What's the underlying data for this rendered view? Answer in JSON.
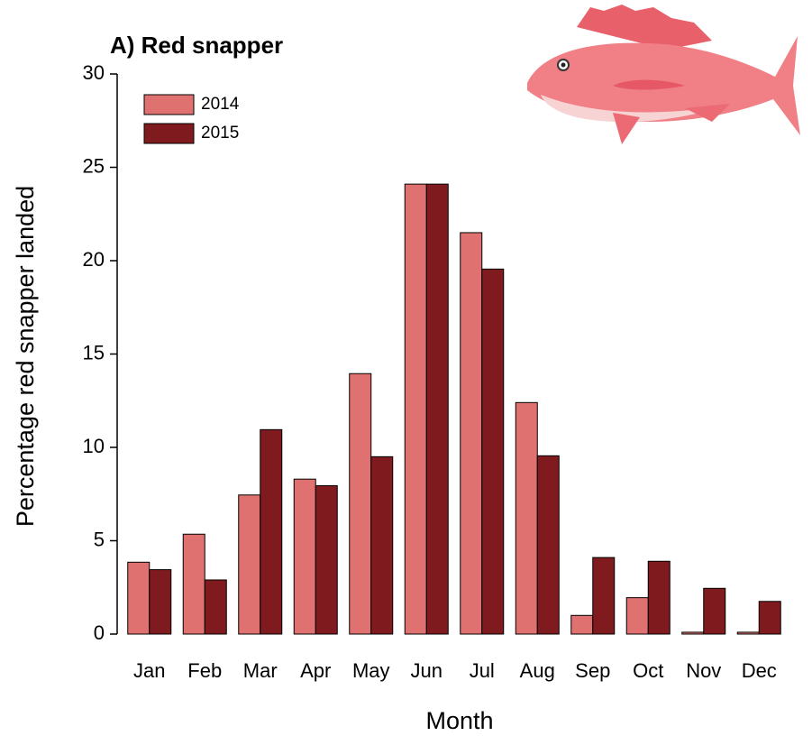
{
  "chart_data": {
    "type": "bar",
    "title": "A) Red snapper",
    "x_label": "Month",
    "y_label": "Percentage red snapper landed",
    "categories": [
      "Jan",
      "Feb",
      "Mar",
      "Apr",
      "May",
      "Jun",
      "Jul",
      "Aug",
      "Sep",
      "Oct",
      "Nov",
      "Dec"
    ],
    "series": [
      {
        "name": "2014",
        "color": "#df7270",
        "values": [
          3.85,
          5.35,
          7.45,
          8.3,
          13.95,
          24.1,
          21.5,
          12.4,
          1.0,
          1.95,
          0.1,
          0.1
        ]
      },
      {
        "name": "2015",
        "color": "#7f1b1f",
        "values": [
          3.45,
          2.9,
          10.95,
          7.95,
          9.5,
          24.1,
          19.55,
          9.55,
          4.1,
          3.9,
          2.45,
          1.75
        ]
      }
    ],
    "ylim": [
      0,
      30
    ],
    "yticks": [
      0,
      5,
      10,
      15,
      20,
      25,
      30
    ],
    "grid": false,
    "legend": "top-left"
  }
}
